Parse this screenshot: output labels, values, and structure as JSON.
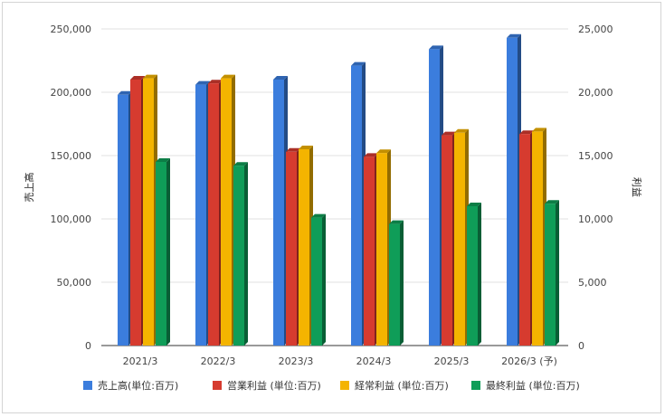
{
  "chart_data": {
    "type": "bar",
    "categories": [
      "2021/3",
      "2022/3",
      "2023/3",
      "2024/3",
      "2025/3",
      "2026/3 (予)"
    ],
    "series": [
      {
        "name": "売上高(単位:百万)",
        "axis": "left",
        "color": "#3b7ddd",
        "values": [
          198000,
          206000,
          210000,
          221000,
          234000,
          243000
        ]
      },
      {
        "name": "営業利益 (単位:百万)",
        "axis": "right",
        "color": "#d63b2f",
        "values": [
          21000,
          20700,
          15300,
          14900,
          16600,
          16700
        ]
      },
      {
        "name": "経常利益 (単位:百万)",
        "axis": "right",
        "color": "#f4b400",
        "values": [
          21100,
          21100,
          15500,
          15200,
          16800,
          16900
        ]
      },
      {
        "name": "最終利益 (単位:百万)",
        "axis": "right",
        "color": "#0f9d58",
        "values": [
          14500,
          14200,
          10100,
          9600,
          11000,
          11200
        ]
      }
    ],
    "ylabel": "売上高",
    "y2label": "利益",
    "ylim": [
      0,
      250000
    ],
    "y2lim": [
      0,
      25000
    ],
    "yticks": [
      "0",
      "50,000",
      "100,000",
      "150,000",
      "200,000",
      "250,000"
    ],
    "y2ticks": [
      "0",
      "5,000",
      "10,000",
      "15,000",
      "20,000",
      "25,000"
    ],
    "grid": true,
    "legend": "bottom"
  }
}
